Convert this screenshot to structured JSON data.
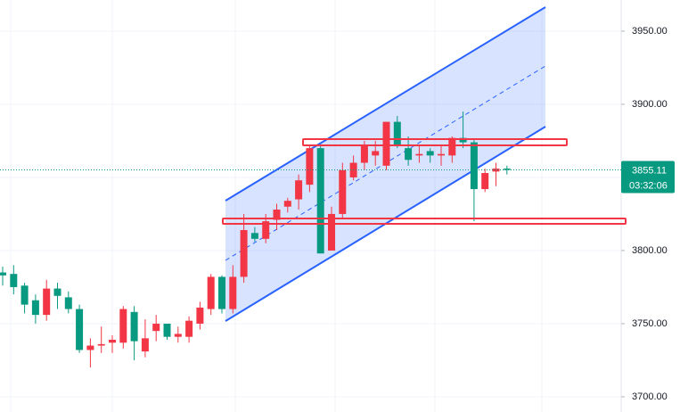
{
  "chart_data": {
    "type": "candlestick",
    "up_color": "#f23645",
    "down_color": "#089981",
    "open": [
      3785,
      3784,
      3776,
      3766,
      3756,
      3774,
      3768,
      3760,
      3732,
      3735,
      3737,
      3737,
      3758,
      3731,
      3745,
      3750,
      3741,
      3741,
      3750,
      3760,
      3782,
      3760,
      3782,
      3812,
      3808,
      3821,
      3830,
      3835,
      3845,
      3870,
      3800,
      3825,
      3850,
      3860,
      3865,
      3858,
      3888,
      3870,
      3865,
      3868,
      3865,
      3865,
      3877,
      3874,
      3842,
      3854,
      3856
    ],
    "high": [
      3789,
      3790,
      3778,
      3770,
      3780,
      3778,
      3772,
      3763,
      3740,
      3748,
      3742,
      3762,
      3762,
      3753,
      3756,
      3750,
      3748,
      3755,
      3765,
      3784,
      3783,
      3790,
      3825,
      3816,
      3825,
      3832,
      3836,
      3852,
      3872,
      3872,
      3830,
      3860,
      3865,
      3875,
      3875,
      3888,
      3892,
      3878,
      3872,
      3870,
      3872,
      3878,
      3895,
      3876,
      3856,
      3860,
      3858
    ],
    "low": [
      3776,
      3770,
      3757,
      3750,
      3752,
      3760,
      3757,
      3730,
      3720,
      3730,
      3730,
      3733,
      3725,
      3727,
      3738,
      3739,
      3737,
      3737,
      3746,
      3756,
      3757,
      3757,
      3778,
      3806,
      3805,
      3814,
      3826,
      3828,
      3840,
      3798,
      3800,
      3822,
      3848,
      3855,
      3858,
      3855,
      3870,
      3858,
      3860,
      3860,
      3858,
      3860,
      3870,
      3820,
      3840,
      3844,
      3852
    ],
    "close": [
      3783,
      3775,
      3763,
      3756,
      3774,
      3769,
      3760,
      3732,
      3735,
      3736,
      3739,
      3760,
      3738,
      3740,
      3750,
      3741,
      3743,
      3752,
      3761,
      3782,
      3760,
      3782,
      3814,
      3808,
      3820,
      3828,
      3834,
      3848,
      3870,
      3798,
      3825,
      3855,
      3860,
      3872,
      3868,
      3888,
      3872,
      3862,
      3866,
      3865,
      3866,
      3877,
      3874,
      3842,
      3853,
      3856,
      3855.11
    ],
    "ylim": [
      3689.6,
      3971.3
    ],
    "yticks": [
      {
        "value": 3700,
        "label": "3700.00"
      },
      {
        "value": 3750,
        "label": "3750.00"
      },
      {
        "value": 3800,
        "label": "3800.00"
      },
      {
        "value": 3850,
        "label": "3850.00"
      },
      {
        "value": 3900,
        "label": "3900.00"
      },
      {
        "value": 3950,
        "label": "3950.00"
      }
    ],
    "last_price": {
      "value": 3855.11,
      "label": "3855.11"
    },
    "countdown": "03:32:06",
    "grid": true
  }
}
